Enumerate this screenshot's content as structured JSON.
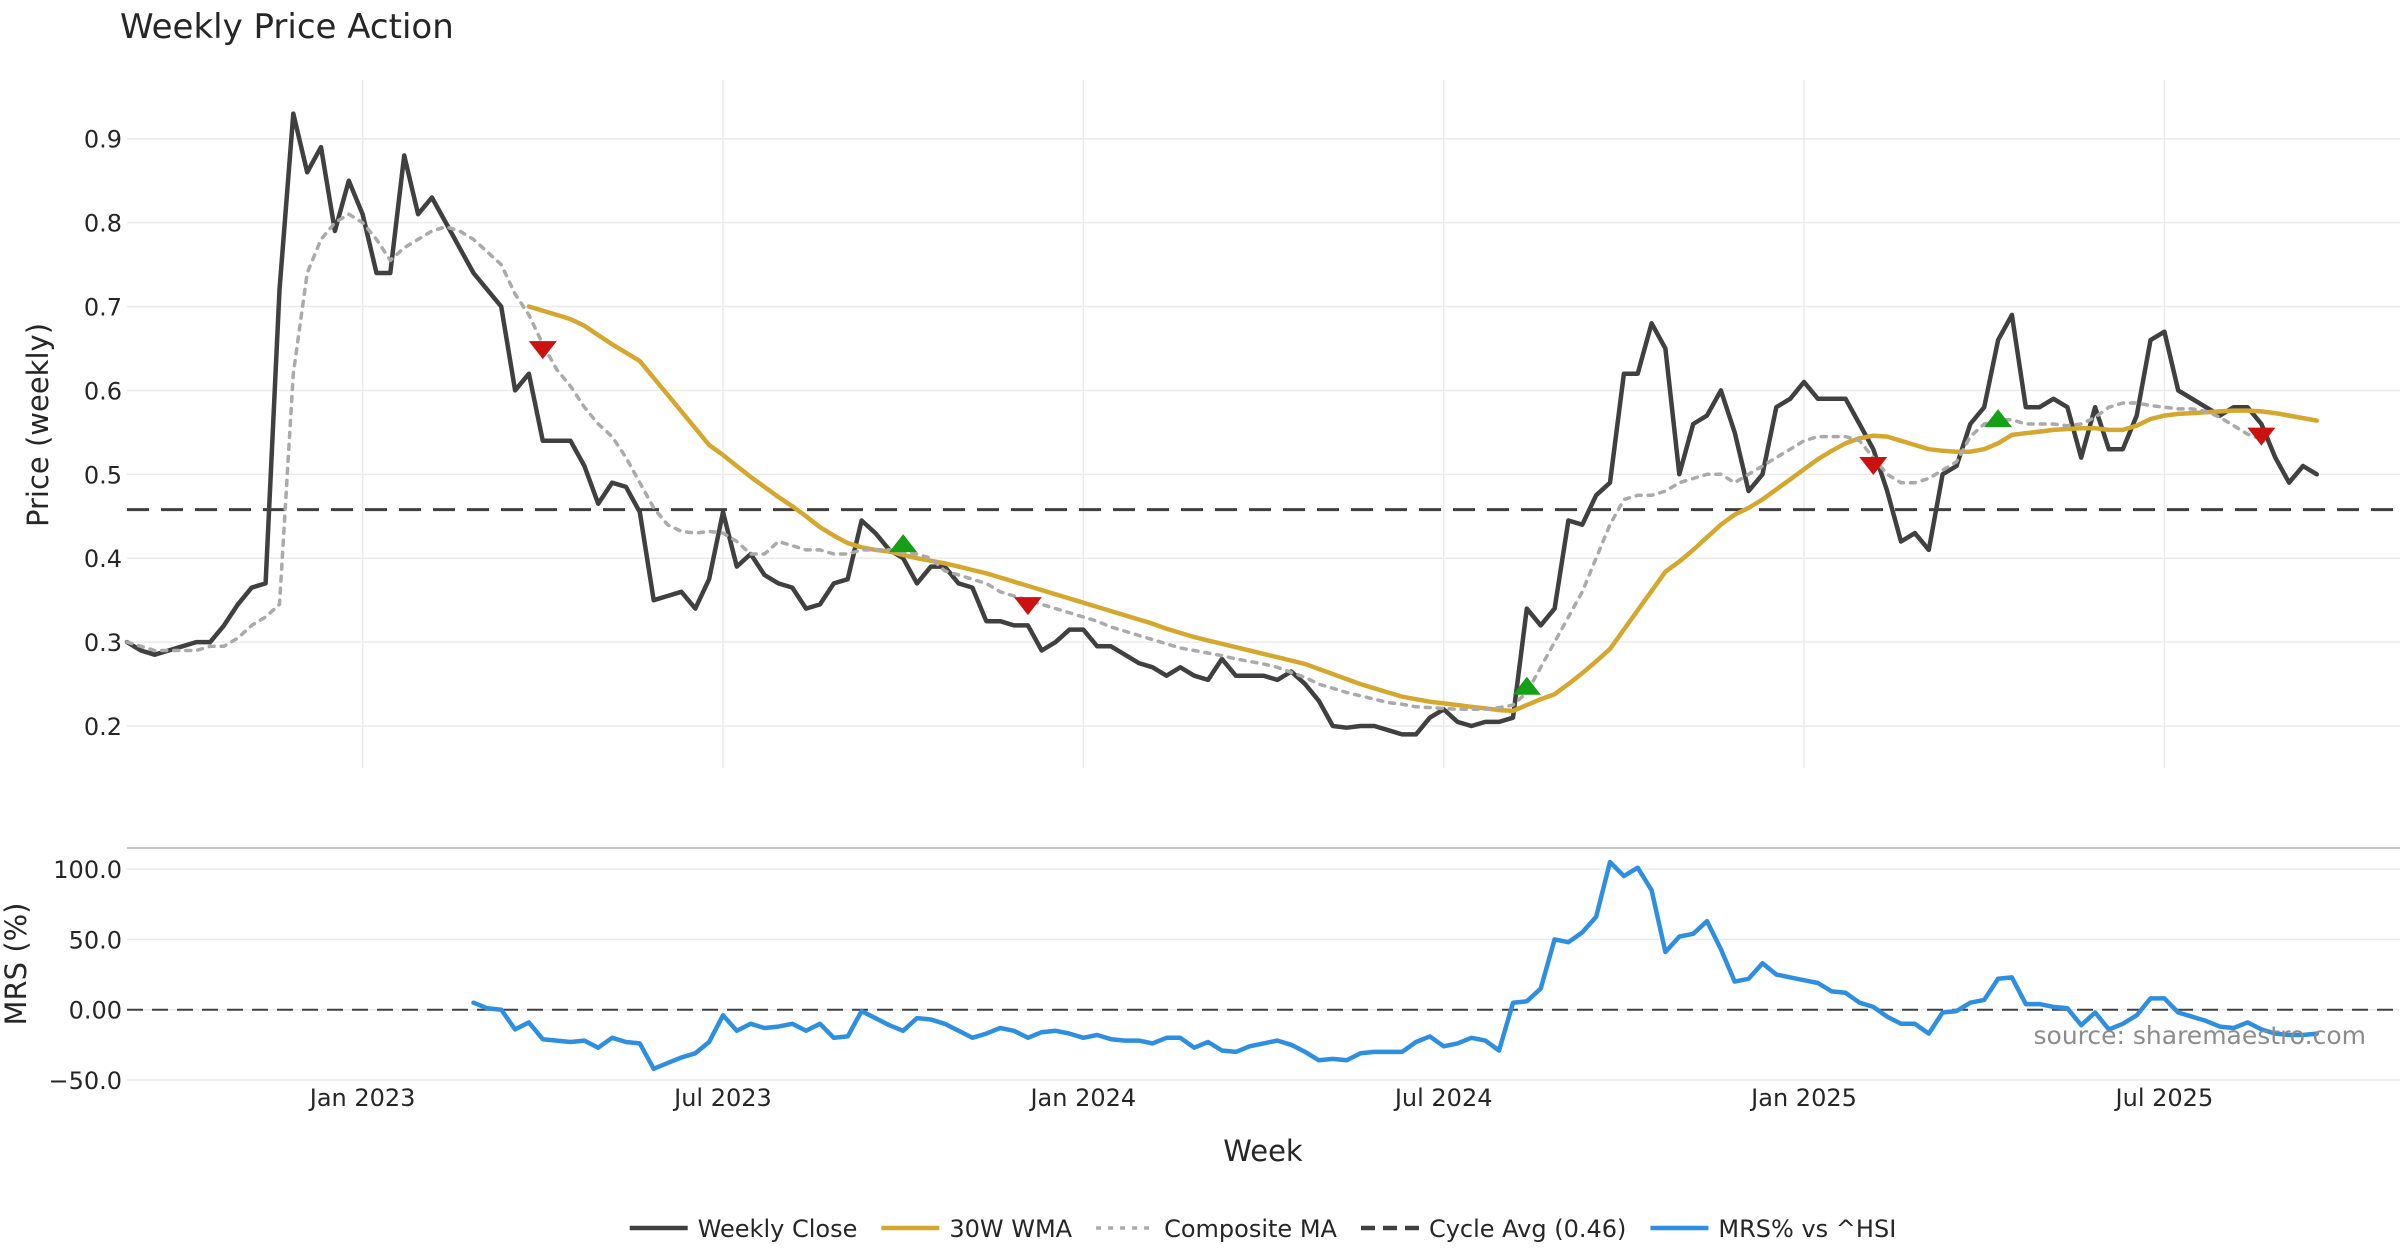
{
  "chart_data": {
    "type": "line",
    "title": "Weekly Price Action",
    "xlabel": "Week",
    "source_note": "source: sharemaestro.com",
    "x_ticks": [
      {
        "label": "Jan 2023",
        "week": 17
      },
      {
        "label": "Jul 2023",
        "week": 43
      },
      {
        "label": "Jan 2024",
        "week": 69
      },
      {
        "label": "Jul 2024",
        "week": 95
      },
      {
        "label": "Jan 2025",
        "week": 121
      },
      {
        "label": "Jul 2025",
        "week": 147
      }
    ],
    "x_range": [
      0,
      164
    ],
    "price_panel": {
      "ylabel": "Price (weekly)",
      "ylim": [
        0.15,
        0.97
      ],
      "yticks": [
        {
          "v": 0.2,
          "label": "0.2"
        },
        {
          "v": 0.3,
          "label": "0.3"
        },
        {
          "v": 0.4,
          "label": "0.4"
        },
        {
          "v": 0.5,
          "label": "0.5"
        },
        {
          "v": 0.6,
          "label": "0.6"
        },
        {
          "v": 0.7,
          "label": "0.7"
        },
        {
          "v": 0.8,
          "label": "0.8"
        },
        {
          "v": 0.9,
          "label": "0.9"
        }
      ],
      "cycle_avg": 0.458,
      "series": [
        {
          "name": "Weekly Close",
          "color": "#404040",
          "style": "solid",
          "values": [
            0.3,
            0.29,
            0.285,
            0.29,
            0.295,
            0.3,
            0.3,
            0.32,
            0.345,
            0.365,
            0.37,
            0.72,
            0.93,
            0.86,
            0.89,
            0.79,
            0.85,
            0.81,
            0.74,
            0.74,
            0.88,
            0.81,
            0.83,
            0.8,
            0.77,
            0.74,
            0.72,
            0.7,
            0.6,
            0.62,
            0.54,
            0.54,
            0.54,
            0.51,
            0.465,
            0.49,
            0.485,
            0.455,
            0.35,
            0.355,
            0.36,
            0.34,
            0.375,
            0.455,
            0.39,
            0.405,
            0.38,
            0.37,
            0.365,
            0.34,
            0.345,
            0.37,
            0.375,
            0.445,
            0.43,
            0.41,
            0.4,
            0.37,
            0.39,
            0.39,
            0.37,
            0.365,
            0.325,
            0.325,
            0.32,
            0.32,
            0.29,
            0.3,
            0.315,
            0.315,
            0.295,
            0.295,
            0.285,
            0.275,
            0.27,
            0.26,
            0.27,
            0.26,
            0.255,
            0.28,
            0.26,
            0.26,
            0.26,
            0.255,
            0.265,
            0.25,
            0.23,
            0.2,
            0.198,
            0.2,
            0.2,
            0.195,
            0.19,
            0.19,
            0.21,
            0.22,
            0.205,
            0.2,
            0.205,
            0.205,
            0.21,
            0.34,
            0.32,
            0.34,
            0.445,
            0.44,
            0.475,
            0.49,
            0.62,
            0.62,
            0.68,
            0.65,
            0.5,
            0.56,
            0.57,
            0.6,
            0.55,
            0.48,
            0.5,
            0.58,
            0.59,
            0.61,
            0.59,
            0.59,
            0.59,
            0.56,
            0.53,
            0.48,
            0.42,
            0.43,
            0.41,
            0.5,
            0.51,
            0.56,
            0.58,
            0.66,
            0.69,
            0.58,
            0.58,
            0.59,
            0.58,
            0.52,
            0.58,
            0.53,
            0.53,
            0.57,
            0.66,
            0.67,
            0.6,
            0.59,
            0.58,
            0.57,
            0.58,
            0.58,
            0.56,
            0.52,
            0.49,
            0.51,
            0.5
          ]
        },
        {
          "name": "30W WMA",
          "color": "#D4A82E",
          "style": "solid",
          "start_week": 29,
          "values": [
            0.7,
            0.695,
            0.69,
            0.685,
            0.677,
            0.666,
            0.655,
            0.645,
            0.635,
            0.615,
            0.595,
            0.575,
            0.555,
            0.535,
            0.523,
            0.51,
            0.497,
            0.485,
            0.473,
            0.462,
            0.45,
            0.437,
            0.427,
            0.418,
            0.413,
            0.41,
            0.408,
            0.404,
            0.4,
            0.397,
            0.394,
            0.39,
            0.386,
            0.382,
            0.377,
            0.372,
            0.367,
            0.362,
            0.357,
            0.352,
            0.347,
            0.342,
            0.337,
            0.332,
            0.327,
            0.322,
            0.316,
            0.311,
            0.306,
            0.302,
            0.298,
            0.294,
            0.29,
            0.286,
            0.282,
            0.278,
            0.274,
            0.268,
            0.262,
            0.256,
            0.25,
            0.245,
            0.24,
            0.235,
            0.232,
            0.229,
            0.227,
            0.225,
            0.223,
            0.221,
            0.219,
            0.218,
            0.225,
            0.232,
            0.238,
            0.25,
            0.263,
            0.277,
            0.292,
            0.315,
            0.338,
            0.361,
            0.384,
            0.396,
            0.41,
            0.425,
            0.44,
            0.452,
            0.46,
            0.47,
            0.482,
            0.494,
            0.506,
            0.518,
            0.528,
            0.537,
            0.543,
            0.546,
            0.545,
            0.54,
            0.535,
            0.53,
            0.528,
            0.527,
            0.527,
            0.53,
            0.537,
            0.547,
            0.549,
            0.551,
            0.553,
            0.554,
            0.555,
            0.555,
            0.553,
            0.553,
            0.558,
            0.566,
            0.57,
            0.572,
            0.573,
            0.574,
            0.575,
            0.576,
            0.576,
            0.575,
            0.573,
            0.57,
            0.567,
            0.564
          ]
        },
        {
          "name": "Composite MA",
          "color": "#AAAAAA",
          "style": "dotted",
          "values": [
            0.3,
            0.295,
            0.29,
            0.29,
            0.29,
            0.29,
            0.295,
            0.295,
            0.305,
            0.32,
            0.33,
            0.345,
            0.62,
            0.74,
            0.78,
            0.8,
            0.81,
            0.8,
            0.78,
            0.755,
            0.77,
            0.78,
            0.79,
            0.795,
            0.79,
            0.78,
            0.765,
            0.75,
            0.715,
            0.69,
            0.655,
            0.625,
            0.605,
            0.58,
            0.56,
            0.545,
            0.52,
            0.49,
            0.46,
            0.44,
            0.432,
            0.43,
            0.432,
            0.43,
            0.42,
            0.405,
            0.405,
            0.42,
            0.415,
            0.41,
            0.41,
            0.405,
            0.405,
            0.41,
            0.41,
            0.41,
            0.407,
            0.405,
            0.4,
            0.385,
            0.38,
            0.375,
            0.37,
            0.36,
            0.355,
            0.35,
            0.345,
            0.34,
            0.335,
            0.33,
            0.325,
            0.318,
            0.313,
            0.308,
            0.303,
            0.298,
            0.293,
            0.29,
            0.287,
            0.284,
            0.28,
            0.277,
            0.274,
            0.27,
            0.264,
            0.258,
            0.25,
            0.245,
            0.24,
            0.236,
            0.232,
            0.228,
            0.226,
            0.223,
            0.222,
            0.221,
            0.22,
            0.22,
            0.22,
            0.222,
            0.225,
            0.24,
            0.27,
            0.3,
            0.33,
            0.36,
            0.4,
            0.44,
            0.47,
            0.475,
            0.475,
            0.48,
            0.49,
            0.495,
            0.5,
            0.5,
            0.49,
            0.5,
            0.51,
            0.52,
            0.53,
            0.54,
            0.545,
            0.545,
            0.545,
            0.54,
            0.52,
            0.5,
            0.49,
            0.49,
            0.495,
            0.505,
            0.515,
            0.545,
            0.56,
            0.565,
            0.565,
            0.56,
            0.56,
            0.56,
            0.558,
            0.56,
            0.568,
            0.58,
            0.585,
            0.585,
            0.582,
            0.58,
            0.578,
            0.578,
            0.575,
            0.568,
            0.558,
            0.548,
            0.542
          ]
        }
      ],
      "signals": [
        {
          "type": "sell",
          "week": 30,
          "value": 0.648,
          "color": "#CC1111"
        },
        {
          "type": "buy",
          "week": 56,
          "value": 0.418,
          "color": "#16A016"
        },
        {
          "type": "sell",
          "week": 65,
          "value": 0.343,
          "color": "#CC1111"
        },
        {
          "type": "buy",
          "week": 101,
          "value": 0.248,
          "color": "#16A016"
        },
        {
          "type": "sell",
          "week": 126,
          "value": 0.51,
          "color": "#CC1111"
        },
        {
          "type": "buy",
          "week": 135,
          "value": 0.567,
          "color": "#16A016"
        },
        {
          "type": "sell",
          "week": 154,
          "value": 0.545,
          "color": "#CC1111"
        }
      ]
    },
    "mrs_panel": {
      "ylabel": "MRS (%)",
      "ylim": [
        -50,
        115
      ],
      "yticks": [
        {
          "v": -50,
          "label": "−50.0"
        },
        {
          "v": 0,
          "label": "0.00"
        },
        {
          "v": 50,
          "label": "50.0"
        },
        {
          "v": 100,
          "label": "100.0"
        }
      ],
      "zero_line": 0,
      "series": {
        "name": "MRS% vs ^HSI",
        "color": "#2E8FE0",
        "start_week": 25,
        "values": [
          5,
          1,
          0,
          -14,
          -9,
          -21,
          -22,
          -23,
          -22,
          -27,
          -20,
          -23,
          -24,
          -42,
          -38,
          -34,
          -31,
          -23,
          -4,
          -15,
          -10,
          -13,
          -12,
          -10,
          -15,
          -10,
          -20,
          -19,
          -1,
          -6,
          -11,
          -15,
          -6,
          -7,
          -10,
          -15,
          -20,
          -17,
          -13,
          -15,
          -20,
          -16,
          -15,
          -17,
          -20,
          -18,
          -21,
          -22,
          -22,
          -24,
          -20,
          -20,
          -27,
          -23,
          -29,
          -30,
          -26,
          -24,
          -22,
          -25,
          -30,
          -36,
          -35,
          -36,
          -31,
          -30,
          -30,
          -30,
          -23,
          -19,
          -26,
          -24,
          -20,
          -22,
          -29,
          5,
          6,
          15,
          50,
          48,
          55,
          66,
          105,
          95,
          101,
          85,
          41,
          52,
          54,
          63,
          43,
          20,
          22,
          33,
          25,
          23,
          21,
          19,
          13,
          12,
          5,
          2,
          -5,
          -10,
          -10,
          -17,
          -2,
          -1,
          5,
          7,
          22,
          23,
          4,
          4,
          2,
          1,
          -11,
          -2,
          -14,
          -10,
          -4,
          8,
          8,
          -2,
          -5,
          -8,
          -12,
          -13,
          -9,
          -14,
          -17,
          -18,
          -18,
          -17
        ]
      }
    },
    "legend": [
      {
        "label": "Weekly Close",
        "color": "#404040",
        "style": "solid"
      },
      {
        "label": "30W WMA",
        "color": "#D4A82E",
        "style": "solid"
      },
      {
        "label": "Composite MA",
        "color": "#AAAAAA",
        "style": "dotted"
      },
      {
        "label": "Cycle Avg (0.46)",
        "color": "#404040",
        "style": "dashed"
      },
      {
        "label": "MRS% vs ^HSI",
        "color": "#2E8FE0",
        "style": "solid"
      }
    ]
  }
}
